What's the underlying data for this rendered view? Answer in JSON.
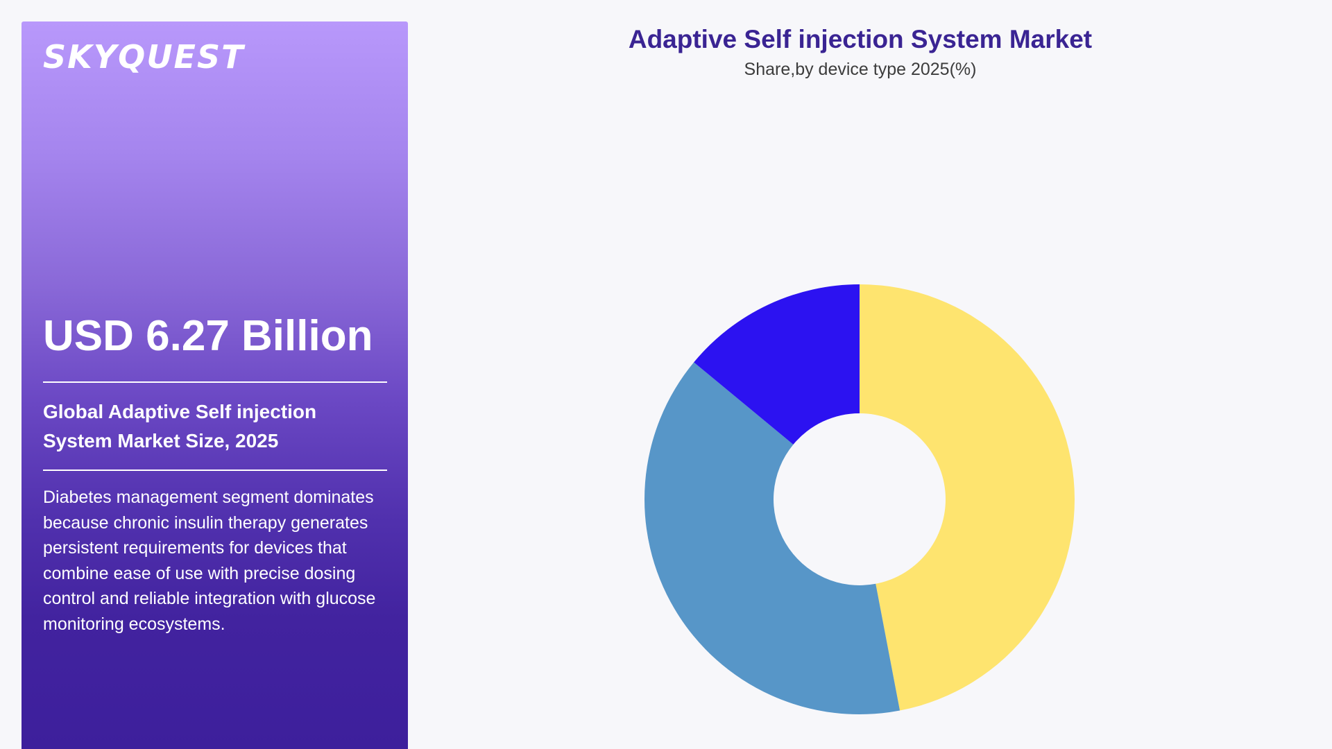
{
  "sidebar": {
    "logo_text": "SKYQUEST",
    "market_value": "USD 6.27 Billion",
    "market_title": "Global Adaptive Self injection System Market Size, 2025",
    "description": "Diabetes management segment dominates because chronic insulin therapy generates persistent requirements for devices that combine ease of use with precise dosing control and reliable integration with glucose monitoring ecosystems."
  },
  "chart_data": {
    "type": "pie",
    "title": "Adaptive Self injection System Market",
    "subtitle": "Share,by device type 2025(%)",
    "donut": true,
    "values": [
      47,
      39,
      14
    ],
    "colors": [
      "#fee46f",
      "#5796c8",
      "#2c12f1"
    ],
    "legend": "none"
  }
}
